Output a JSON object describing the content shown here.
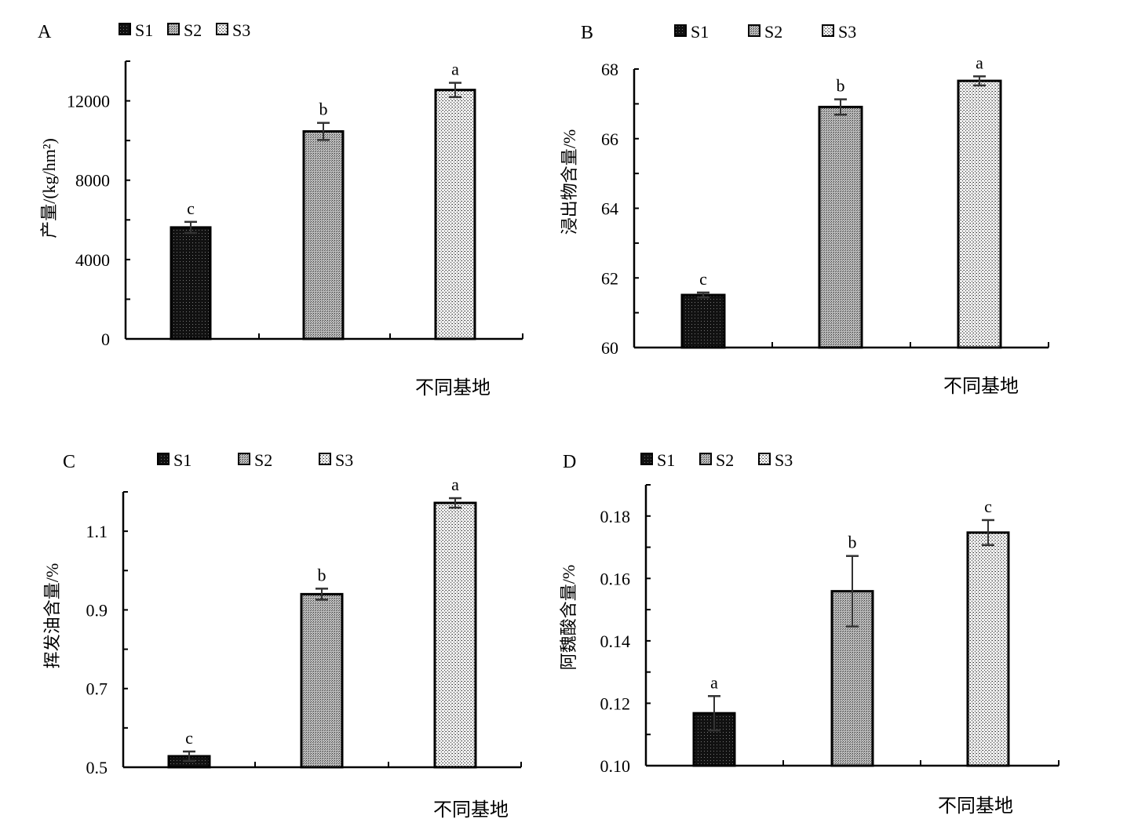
{
  "chart_data": [
    {
      "type": "bar",
      "panel": "A",
      "categories": [
        "S1",
        "S2",
        "S3"
      ],
      "legend": [
        "S1",
        "S2",
        "S3"
      ],
      "values": [
        5620,
        10460,
        12550
      ],
      "errors": [
        280,
        430,
        360
      ],
      "letters": [
        "c",
        "b",
        "a"
      ],
      "ylabel": "产量/(kg/hm²)",
      "ylabel_color": "#2f5597",
      "xlabel": "不同基地",
      "ylim": [
        0,
        14000
      ],
      "yticks": [
        0,
        4000,
        8000,
        12000
      ],
      "yticklabels": [
        "0",
        "4000",
        "8000",
        "12000"
      ],
      "minor_step": 2000,
      "legend_position": "top"
    },
    {
      "type": "bar",
      "panel": "B",
      "categories": [
        "S1",
        "S2",
        "S3"
      ],
      "legend": [
        "S1",
        "S2",
        "S3"
      ],
      "values": [
        61.51,
        66.91,
        67.66
      ],
      "errors": [
        0.07,
        0.22,
        0.13
      ],
      "letters": [
        "c",
        "b",
        "a"
      ],
      "ylabel": "浸出物含量/%",
      "ylabel_color": "#000000",
      "xlabel": "不同基地",
      "ylim": [
        60,
        68
      ],
      "yticks": [
        60,
        62,
        64,
        66,
        68
      ],
      "yticklabels": [
        "60",
        "62",
        "64",
        "66",
        "68"
      ],
      "minor_step": 1,
      "legend_position": "top"
    },
    {
      "type": "bar",
      "panel": "C",
      "categories": [
        "S1",
        "S2",
        "S3"
      ],
      "legend": [
        "S1",
        "S2",
        "S3"
      ],
      "values": [
        0.528,
        0.94,
        1.172
      ],
      "errors": [
        0.012,
        0.014,
        0.012
      ],
      "letters": [
        "c",
        "b",
        "a"
      ],
      "ylabel": "挥发油含量/%",
      "ylabel_color": "#000000",
      "xlabel": "不同基地",
      "ylim": [
        0.5,
        1.2
      ],
      "yticks": [
        0.5,
        0.7,
        0.9,
        1.1
      ],
      "yticklabels": [
        "0.5",
        "0.7",
        "0.9",
        "1.1"
      ],
      "minor_step": 0.1,
      "legend_position": "top"
    },
    {
      "type": "bar",
      "panel": "D",
      "categories": [
        "S1",
        "S2",
        "S3"
      ],
      "legend": [
        "S1",
        "S2",
        "S3"
      ],
      "values": [
        0.1168,
        0.1559,
        0.1747
      ],
      "errors": [
        0.0055,
        0.0113,
        0.004
      ],
      "letters": [
        "a",
        "b",
        "c"
      ],
      "ylabel": "阿魏酸含量/%",
      "ylabel_color": "#000000",
      "xlabel": "不同基地",
      "ylim": [
        0.1,
        0.19
      ],
      "yticks": [
        0.1,
        0.12,
        0.14,
        0.16,
        0.18
      ],
      "yticklabels": [
        "0.10",
        "0.12",
        "0.14",
        "0.16",
        "0.18"
      ],
      "minor_step": 0.01,
      "legend_position": "top"
    }
  ]
}
